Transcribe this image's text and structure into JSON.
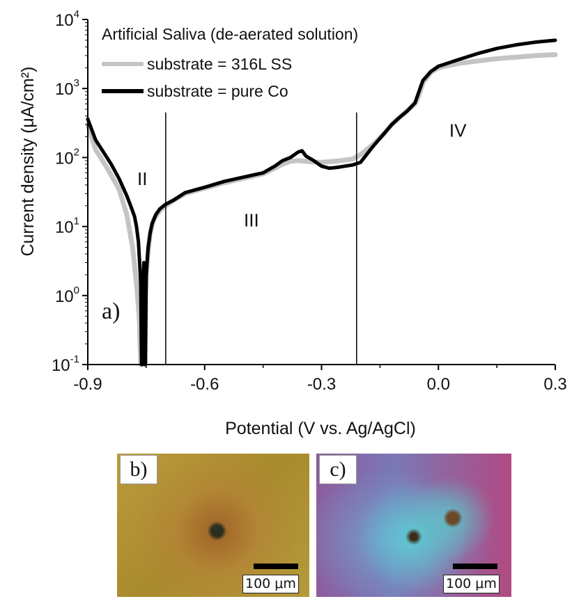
{
  "chart_data": {
    "type": "line",
    "title": "",
    "panel_label": "a)",
    "xlabel": "Potential (V vs. Ag/AgCl)",
    "ylabel": "Current density (μA/cm²)",
    "xlim": [
      -0.9,
      0.3
    ],
    "ylim": [
      0.1,
      10000
    ],
    "y_scale": "log",
    "x_ticks": [
      "-0.9",
      "-0.6",
      "-0.3",
      "0.0",
      "0.3"
    ],
    "x_tick_values": [
      -0.9,
      -0.6,
      -0.3,
      0.0,
      0.3
    ],
    "y_tick_values": [
      0.1,
      1,
      10,
      100,
      1000,
      10000
    ],
    "y_ticks": [
      {
        "base": "10",
        "exp": "-1"
      },
      {
        "base": "10",
        "exp": "0"
      },
      {
        "base": "10",
        "exp": "1"
      },
      {
        "base": "10",
        "exp": "2"
      },
      {
        "base": "10",
        "exp": "3"
      },
      {
        "base": "10",
        "exp": "4"
      }
    ],
    "legend_title": "Artificial Saliva (de-aerated solution)",
    "legend_position": "top-left",
    "grid": false,
    "series": [
      {
        "name": "substrate = 316L SS",
        "color": "#c4c4c4",
        "x": [
          -0.9,
          -0.88,
          -0.85,
          -0.82,
          -0.8,
          -0.785,
          -0.775,
          -0.768,
          -0.764,
          -0.762,
          -0.755,
          -0.748,
          -0.74,
          -0.73,
          -0.715,
          -0.7,
          -0.68,
          -0.65,
          -0.6,
          -0.55,
          -0.5,
          -0.45,
          -0.42,
          -0.4,
          -0.38,
          -0.36,
          -0.34,
          -0.32,
          -0.3,
          -0.27,
          -0.25,
          -0.22,
          -0.2,
          -0.17,
          -0.14,
          -0.12,
          -0.1,
          -0.08,
          -0.06,
          -0.05,
          -0.04,
          -0.02,
          0.0,
          0.05,
          0.1,
          0.15,
          0.2,
          0.25,
          0.3
        ],
        "y": [
          300,
          130,
          70,
          35,
          15,
          5,
          1.5,
          0.5,
          0.1,
          0.1,
          0.5,
          3,
          8,
          13,
          17,
          20,
          24,
          30,
          36,
          43,
          50,
          58,
          70,
          80,
          88,
          90,
          88,
          86,
          85,
          88,
          90,
          95,
          110,
          150,
          220,
          300,
          380,
          480,
          600,
          800,
          1200,
          1700,
          2000,
          2300,
          2500,
          2700,
          2850,
          3000,
          3100
        ]
      },
      {
        "name": "substrate = pure Co",
        "color": "#000000",
        "x": [
          -0.9,
          -0.88,
          -0.86,
          -0.84,
          -0.82,
          -0.8,
          -0.79,
          -0.78,
          -0.775,
          -0.77,
          -0.767,
          -0.764,
          -0.762,
          -0.76,
          -0.758,
          -0.756,
          -0.754,
          -0.752,
          -0.75,
          -0.745,
          -0.74,
          -0.735,
          -0.725,
          -0.715,
          -0.7,
          -0.68,
          -0.65,
          -0.6,
          -0.55,
          -0.5,
          -0.45,
          -0.42,
          -0.4,
          -0.38,
          -0.36,
          -0.35,
          -0.34,
          -0.32,
          -0.3,
          -0.28,
          -0.26,
          -0.24,
          -0.22,
          -0.2,
          -0.17,
          -0.14,
          -0.12,
          -0.1,
          -0.08,
          -0.06,
          -0.05,
          -0.04,
          -0.02,
          0.0,
          0.05,
          0.1,
          0.15,
          0.2,
          0.25,
          0.3
        ],
        "y": [
          360,
          180,
          120,
          80,
          50,
          28,
          20,
          14,
          10,
          6,
          3,
          1.5,
          0.1,
          0.1,
          1.2,
          3,
          0.1,
          0.1,
          2,
          5,
          8,
          11,
          15,
          18,
          21,
          24,
          31,
          37,
          45,
          52,
          60,
          75,
          90,
          100,
          120,
          125,
          105,
          90,
          75,
          70,
          72,
          75,
          78,
          85,
          140,
          220,
          300,
          380,
          470,
          620,
          900,
          1300,
          1750,
          2100,
          2600,
          3200,
          3800,
          4300,
          4700,
          5000
        ]
      }
    ],
    "regions": [
      {
        "label": "II",
        "x": -0.76,
        "y": 40
      },
      {
        "label": "III",
        "x": -0.48,
        "y": 10
      },
      {
        "label": "IV",
        "x": 0.05,
        "y": 200
      }
    ],
    "region_boundaries": [
      -0.7,
      -0.21
    ],
    "boundary_top_y": 450
  },
  "micrographs": [
    {
      "label": "b)",
      "scale_label": "100 μm"
    },
    {
      "label": "c)",
      "scale_label": "100 μm"
    }
  ]
}
